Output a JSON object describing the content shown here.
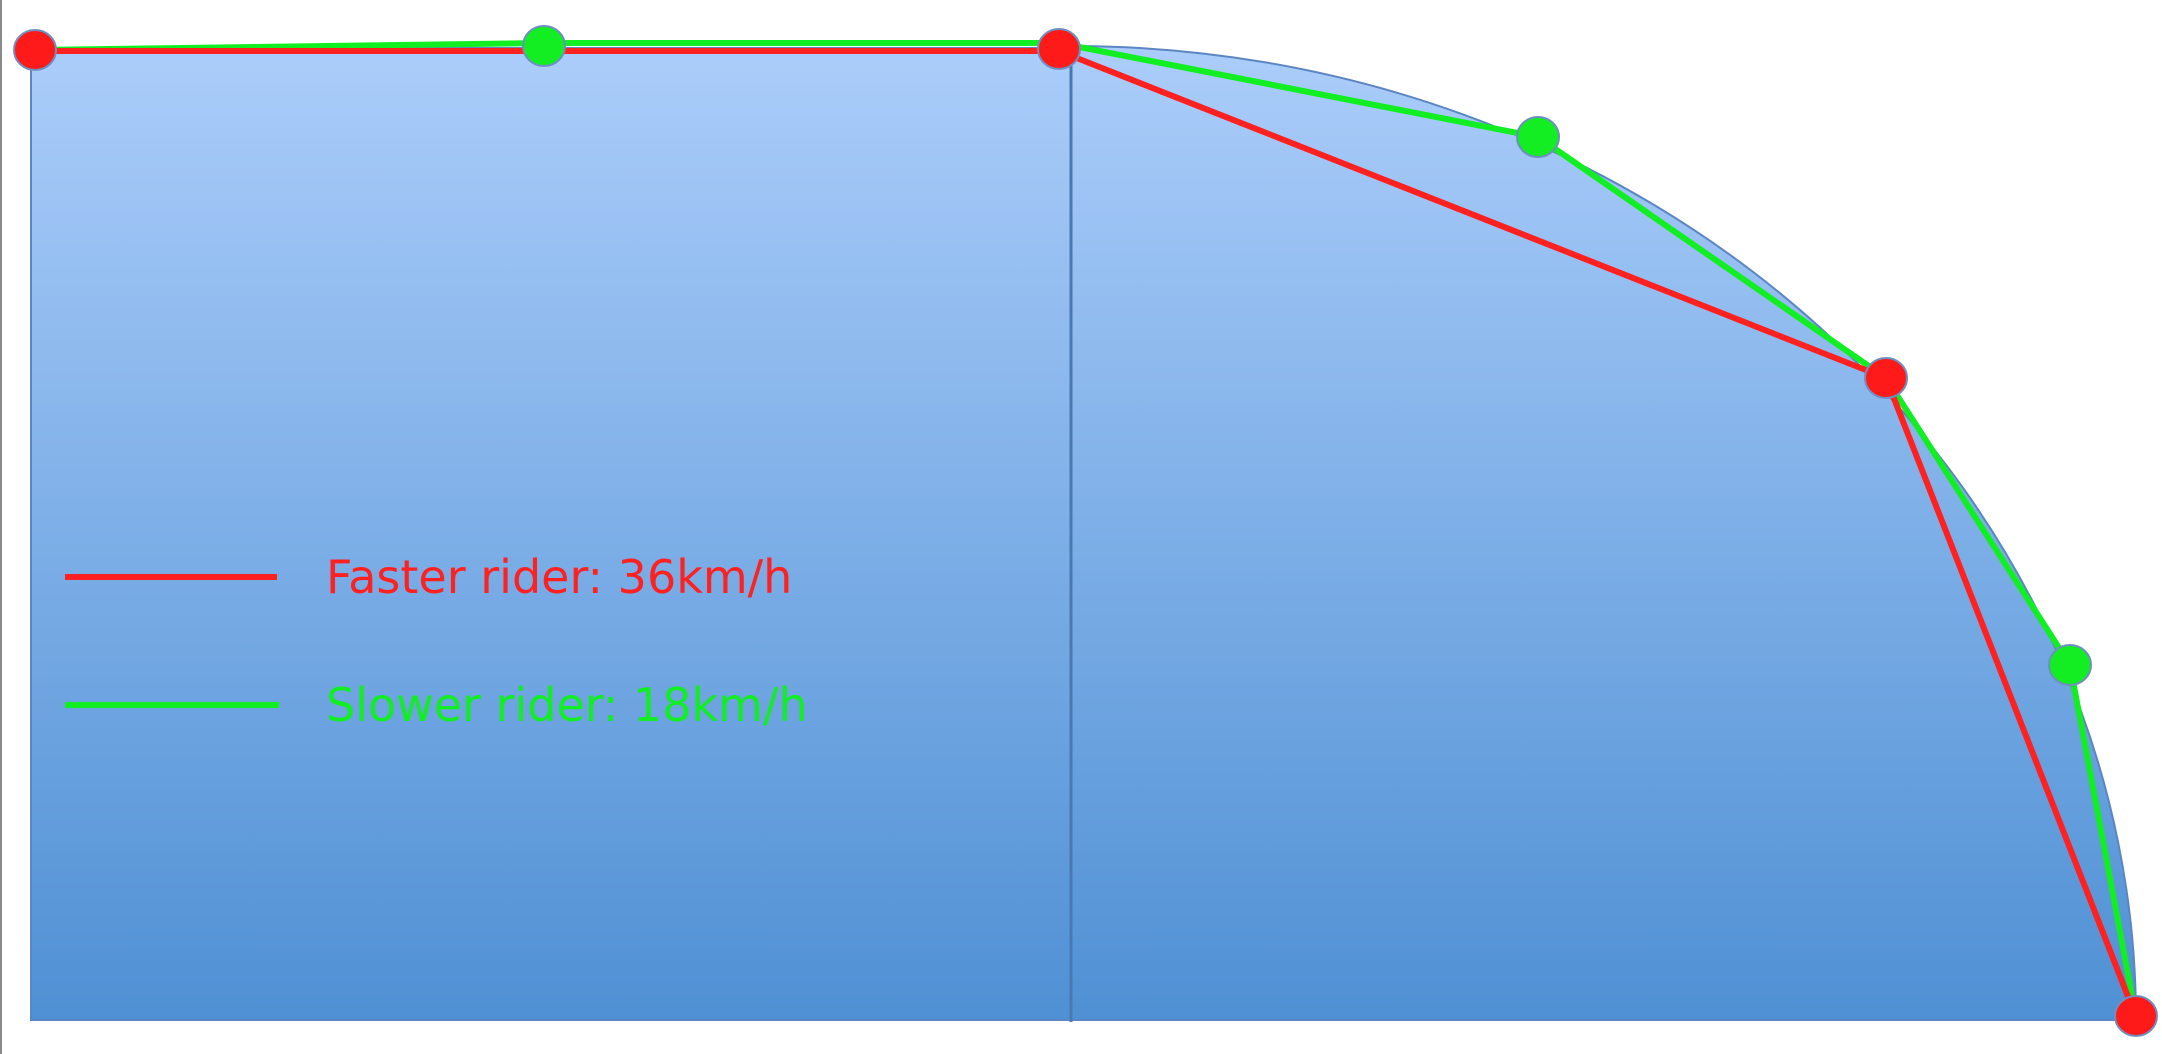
{
  "legend": [
    {
      "label": "Faster rider: 36km/h",
      "color": "#ff2020"
    },
    {
      "label": "Slower rider: 18km/h",
      "color": "#11ee22"
    }
  ],
  "colors": {
    "fill_top": "#abcdfa",
    "fill_bottom": "#4f90d4",
    "shape_stroke": "#5b86c2",
    "faster_line": "#ff2020",
    "slower_line": "#11ee22",
    "faster_point": "#ff1a1a",
    "slower_point": "#12ee22",
    "point_outline": "#6f8fc0"
  }
}
